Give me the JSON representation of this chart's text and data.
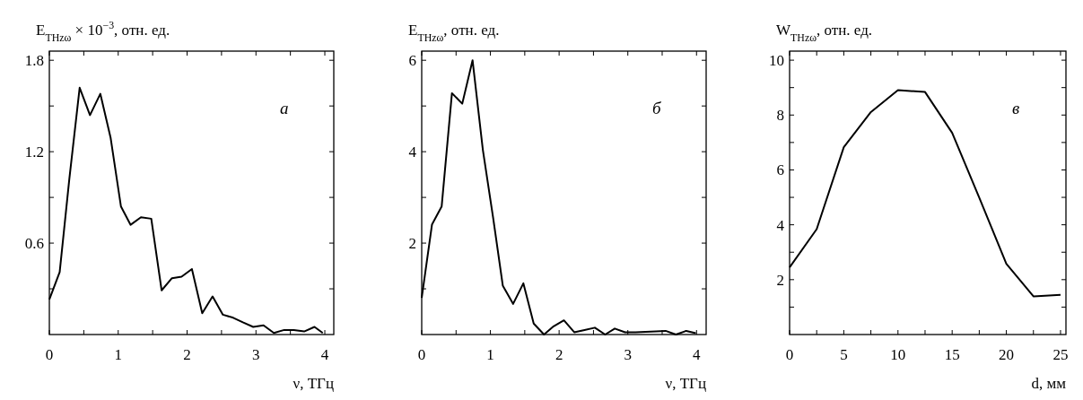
{
  "chart_data": [
    {
      "type": "line",
      "ylabel": "E$_{THzω}$ × 10$^{−3}$, отн. ед.",
      "xlabel": "ν, ТГц",
      "annotations": [
        "а"
      ],
      "x": [
        0,
        0.15,
        0.29,
        0.44,
        0.59,
        0.74,
        0.89,
        1.04,
        1.18,
        1.33,
        1.48,
        1.63,
        1.78,
        1.92,
        2.07,
        2.22,
        2.37,
        2.52,
        2.67,
        2.81,
        2.96,
        3.11,
        3.26,
        3.41,
        3.55,
        3.7,
        3.85,
        3.97
      ],
      "series": [
        {
          "color": "#000000",
          "values": [
            0.23,
            0.41,
            1.02,
            1.62,
            1.44,
            1.58,
            1.29,
            0.84,
            0.72,
            0.77,
            0.76,
            0.29,
            0.37,
            0.38,
            0.43,
            0.14,
            0.25,
            0.13,
            0.11,
            0.08,
            0.05,
            0.06,
            0.01,
            0.03,
            0.03,
            0.02,
            0.05,
            0.01
          ]
        }
      ],
      "xlim": [
        0,
        4.13
      ],
      "ylim": [
        0,
        1.86
      ],
      "xticks": [
        0,
        {
          "value": 0.5,
          "label": null
        },
        1,
        {
          "value": 1.5,
          "label": null
        },
        2,
        {
          "value": 2.5,
          "label": null
        },
        3,
        {
          "value": 3.5,
          "label": null
        },
        4
      ],
      "yticks": [
        {
          "value": 0.3,
          "label": null
        },
        0.6,
        {
          "value": 0.9,
          "label": null
        },
        1.2,
        {
          "value": 1.5,
          "label": null
        },
        1.8
      ],
      "grid": false,
      "line_style": "solid"
    },
    {
      "type": "line",
      "ylabel": "E$_{THzω}$, отн. ед.",
      "xlabel": "ν, ТГц",
      "annotations": [
        "б"
      ],
      "x": [
        0,
        0.15,
        0.29,
        0.44,
        0.59,
        0.74,
        0.89,
        1.04,
        1.18,
        1.33,
        1.48,
        1.63,
        1.78,
        1.92,
        2.07,
        2.22,
        2.37,
        2.52,
        2.67,
        2.81,
        2.96,
        3.11,
        3.26,
        3.41,
        3.55,
        3.7,
        3.85,
        3.99
      ],
      "series": [
        {
          "color": "#000000",
          "values": [
            0.8,
            2.41,
            2.8,
            5.28,
            5.05,
            6.0,
            4.04,
            2.55,
            1.07,
            0.67,
            1.12,
            0.24,
            0,
            0.18,
            0.31,
            0.05,
            0.1,
            0.15,
            0,
            0.13,
            0.05,
            0.05,
            0.06,
            0.07,
            0.08,
            0,
            0.08,
            0.03
          ]
        }
      ],
      "xlim": [
        0,
        4.14
      ],
      "ylim": [
        0,
        6.2
      ],
      "xticks": [
        0,
        {
          "value": 0.5,
          "label": null
        },
        1,
        {
          "value": 1.5,
          "label": null
        },
        2,
        {
          "value": 2.5,
          "label": null
        },
        3,
        {
          "value": 3.5,
          "label": null
        },
        4
      ],
      "yticks": [
        {
          "value": 1,
          "label": null
        },
        2,
        {
          "value": 3,
          "label": null
        },
        4,
        {
          "value": 5,
          "label": null
        },
        6
      ],
      "grid": false,
      "line_style": "solid"
    },
    {
      "type": "line",
      "ylabel": "W$_{THzω}$, отн. ед.",
      "xlabel": "d, мм",
      "annotations": [
        "в"
      ],
      "x": [
        0,
        2.5,
        5,
        7.5,
        10,
        12.5,
        15,
        17.5,
        20,
        22.5,
        25
      ],
      "series": [
        {
          "color": "#000000",
          "values": [
            2.45,
            3.84,
            6.83,
            8.11,
            8.91,
            8.84,
            7.35,
            4.99,
            2.58,
            1.39,
            1.45
          ]
        }
      ],
      "xlim": [
        0,
        25.5
      ],
      "ylim": [
        0,
        10.33
      ],
      "xticks": [
        0,
        {
          "value": 2.5,
          "label": null
        },
        5,
        {
          "value": 7.5,
          "label": null
        },
        10,
        {
          "value": 12.5,
          "label": null
        },
        15,
        {
          "value": 17.5,
          "label": null
        },
        20,
        {
          "value": 22.5,
          "label": null
        },
        25
      ],
      "yticks": [
        {
          "value": 1,
          "label": null
        },
        2,
        {
          "value": 3,
          "label": null
        },
        4,
        {
          "value": 5,
          "label": null
        },
        6,
        {
          "value": 7,
          "label": null
        },
        8,
        {
          "value": 9,
          "label": null
        },
        10
      ],
      "grid": false,
      "line_style": "solid"
    }
  ]
}
